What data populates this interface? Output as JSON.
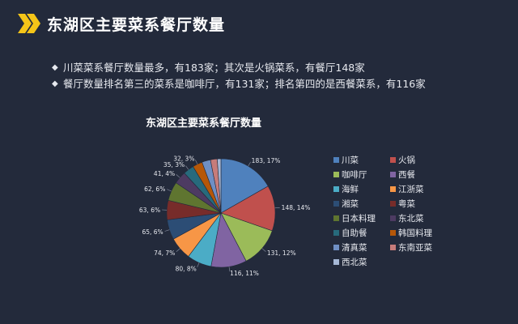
{
  "header": {
    "title": "东湖区主要菜系餐厅数量"
  },
  "bullets": [
    "川菜菜系餐厅数量最多，有183家；其次是火锅菜系，有餐厅148家",
    "餐厅数量排名第三的菜系是咖啡厅，有131家；排名第四的是西餐菜系，有116家"
  ],
  "chart_data": {
    "type": "pie",
    "title": "东湖区主要菜系餐厅数量",
    "categories": [
      "川菜",
      "火锅",
      "咖啡厅",
      "西餐",
      "海鲜",
      "江浙菜",
      "湘菜",
      "粤菜",
      "日本料理",
      "东北菜",
      "自助餐",
      "韩国料理",
      "清真菜",
      "东南亚菜",
      "西北菜"
    ],
    "values": [
      183,
      148,
      131,
      116,
      80,
      74,
      65,
      63,
      62,
      41,
      35,
      32,
      28,
      22,
      12
    ],
    "data_labels": [
      "183, 17%",
      "148, 14%",
      "131, 12%",
      "116, 11%",
      "80, 8%",
      "74, 7%",
      "65, 6%",
      "63, 6%",
      "62, 6%",
      "41, 4%",
      "35, 3%",
      "32, 3%",
      "",
      "",
      ""
    ],
    "colors": [
      "#4f81bd",
      "#c0504d",
      "#9bbb59",
      "#8064a2",
      "#4bacc6",
      "#f79646",
      "#2c4d75",
      "#772c2a",
      "#5f7530",
      "#4d3b62",
      "#276a7c",
      "#b65708",
      "#6f8fc4",
      "#c77c7a",
      "#a6b8d6"
    ],
    "legend_position": "right"
  }
}
